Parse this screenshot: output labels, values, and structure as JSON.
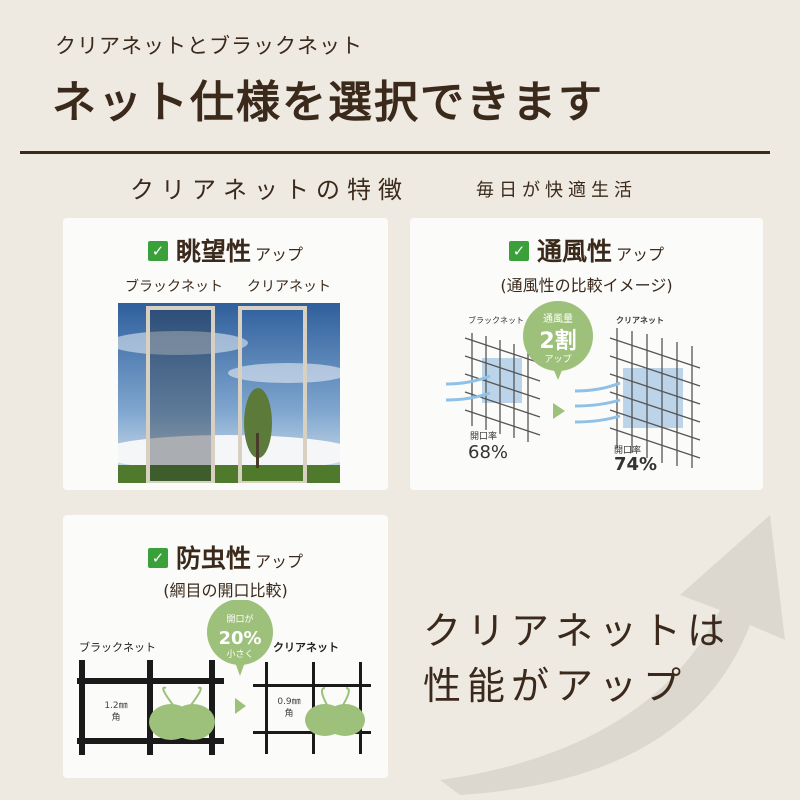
{
  "header": {
    "subtitle": "クリアネットとブラックネット",
    "title": "ネット仕様を選択できます"
  },
  "section": {
    "title": "クリアネットの特徴",
    "tagline": "毎日が快適生活"
  },
  "cards": [
    {
      "title": "眺望性",
      "suffix": "アップ",
      "labels": [
        "ブラックネット",
        "クリアネット"
      ]
    },
    {
      "title": "通風性",
      "suffix": "アップ",
      "caption": "(通風性の比較イメージ)",
      "left_label": "ブラックネット",
      "right_label": "クリアネット",
      "bubble": [
        "通風量",
        "2割",
        "アップ"
      ],
      "left_rate_label": "開口率",
      "left_rate": "68%",
      "right_rate_label": "開口率",
      "right_rate": "74%"
    },
    {
      "title": "防虫性",
      "suffix": "アップ",
      "caption": "(網目の開口比較)",
      "left_label": "ブラックネット",
      "right_label": "クリアネット",
      "bubble": [
        "開口が",
        "20%",
        "小さく"
      ],
      "left_size": "1.2㎜",
      "left_unit": "角",
      "right_size": "0.9㎜",
      "right_unit": "角"
    }
  ],
  "callout": {
    "line1": "クリアネットは",
    "line2": "性能がアップ"
  },
  "colors": {
    "accent_green": "#9dc07a",
    "check_green": "#3aa03a",
    "text_brown": "#3b2a1c",
    "background": "#eeeae2"
  }
}
